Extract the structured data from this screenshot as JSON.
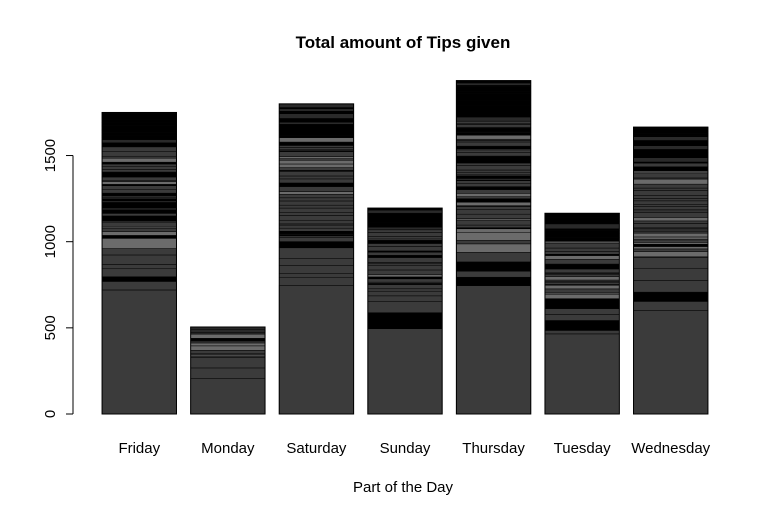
{
  "chart_data": {
    "type": "bar",
    "stacked": true,
    "title": "Total amount of Tips given",
    "xlabel": "Part of the Day",
    "ylabel": "",
    "categories": [
      "Friday",
      "Monday",
      "Saturday",
      "Sunday",
      "Thursday",
      "Tuesday",
      "Wednesday"
    ],
    "values": [
      1750,
      505,
      1800,
      1195,
      1935,
      1165,
      1665
    ],
    "base_segment": [
      720,
      205,
      745,
      495,
      745,
      465,
      600
    ],
    "ylim": [
      0,
      1950
    ],
    "yticks": [
      0,
      500,
      1000,
      1500
    ],
    "colors": {
      "base": "#3b3b3b",
      "dark": "#000000",
      "light": "#6b6b6b",
      "axis": "#000000"
    },
    "grid": false,
    "legend": "none"
  }
}
